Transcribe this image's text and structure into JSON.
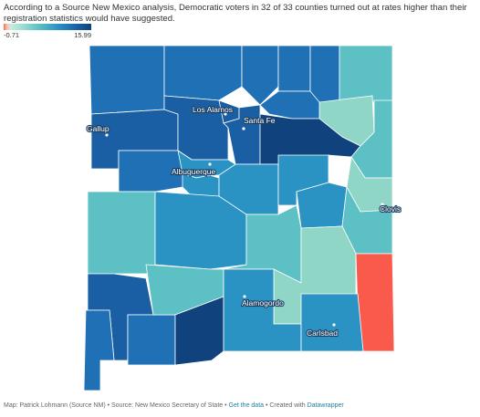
{
  "title": "According to a Source New Mexico analysis, Democratic voters in 32 of 33 counties turned out at rates higher than their registration statistics would have suggested.",
  "legend": {
    "min": "-0.71",
    "max": "15.99",
    "colors": [
      "#fa6a5b",
      "#9fdcd0",
      "#5cc0c4",
      "#2a93c4",
      "#1b63a8",
      "#10427e"
    ]
  },
  "map": {
    "region": "New Mexico counties",
    "fills": {
      "san_juan": "#1f70b5",
      "rio_arriba_w": "#1f70b5",
      "rio_arriba_e": "#1f70b5",
      "taos": "#1f70b5",
      "colfax": "#1f70b5",
      "union": "#5cc0c4",
      "harding": "#8fd6c6",
      "mckinley": "#1a5fa4",
      "sandoval": "#1a5fa4",
      "los_alamos": "#1a5fa4",
      "santa_fe": "#1a5fa4",
      "mora": "#1f70b5",
      "san_miguel": "#10427e",
      "quay": "#5cc0c4",
      "cibola": "#1f70b5",
      "bernalillo": "#2a93c4",
      "valencia": "#2a93c4",
      "torrance": "#2a93c4",
      "guadalupe": "#2a93c4",
      "de_baca": "#2a93c4",
      "curry": "#8fd6c6",
      "roosevelt": "#5cc0c4",
      "catron": "#5cc0c4",
      "socorro": "#2a93c4",
      "lincoln": "#5cc0c4",
      "chaves": "#8fd6c6",
      "lea": "#fa5a4b",
      "grant": "#1a5fa4",
      "hidalgo": "#1f70b5",
      "luna": "#1f70b5",
      "sierra": "#5cc0c4",
      "dona_ana": "#10427e",
      "otero": "#2a93c4",
      "eddy": "#2a93c4"
    }
  },
  "cities": [
    {
      "name": "Los Alamos"
    },
    {
      "name": "Santa Fe"
    },
    {
      "name": "Gallup"
    },
    {
      "name": "Albuquerque"
    },
    {
      "name": "Clovis"
    },
    {
      "name": "Alamogordo"
    },
    {
      "name": "Carlsbad"
    }
  ],
  "footer": {
    "credit": "Map: Patrick Lohmann (Source NM) • Source: New Mexico Secretary of State • ",
    "get_data": "Get the data",
    "sep": " • Created with ",
    "tool": "Datawrapper"
  }
}
